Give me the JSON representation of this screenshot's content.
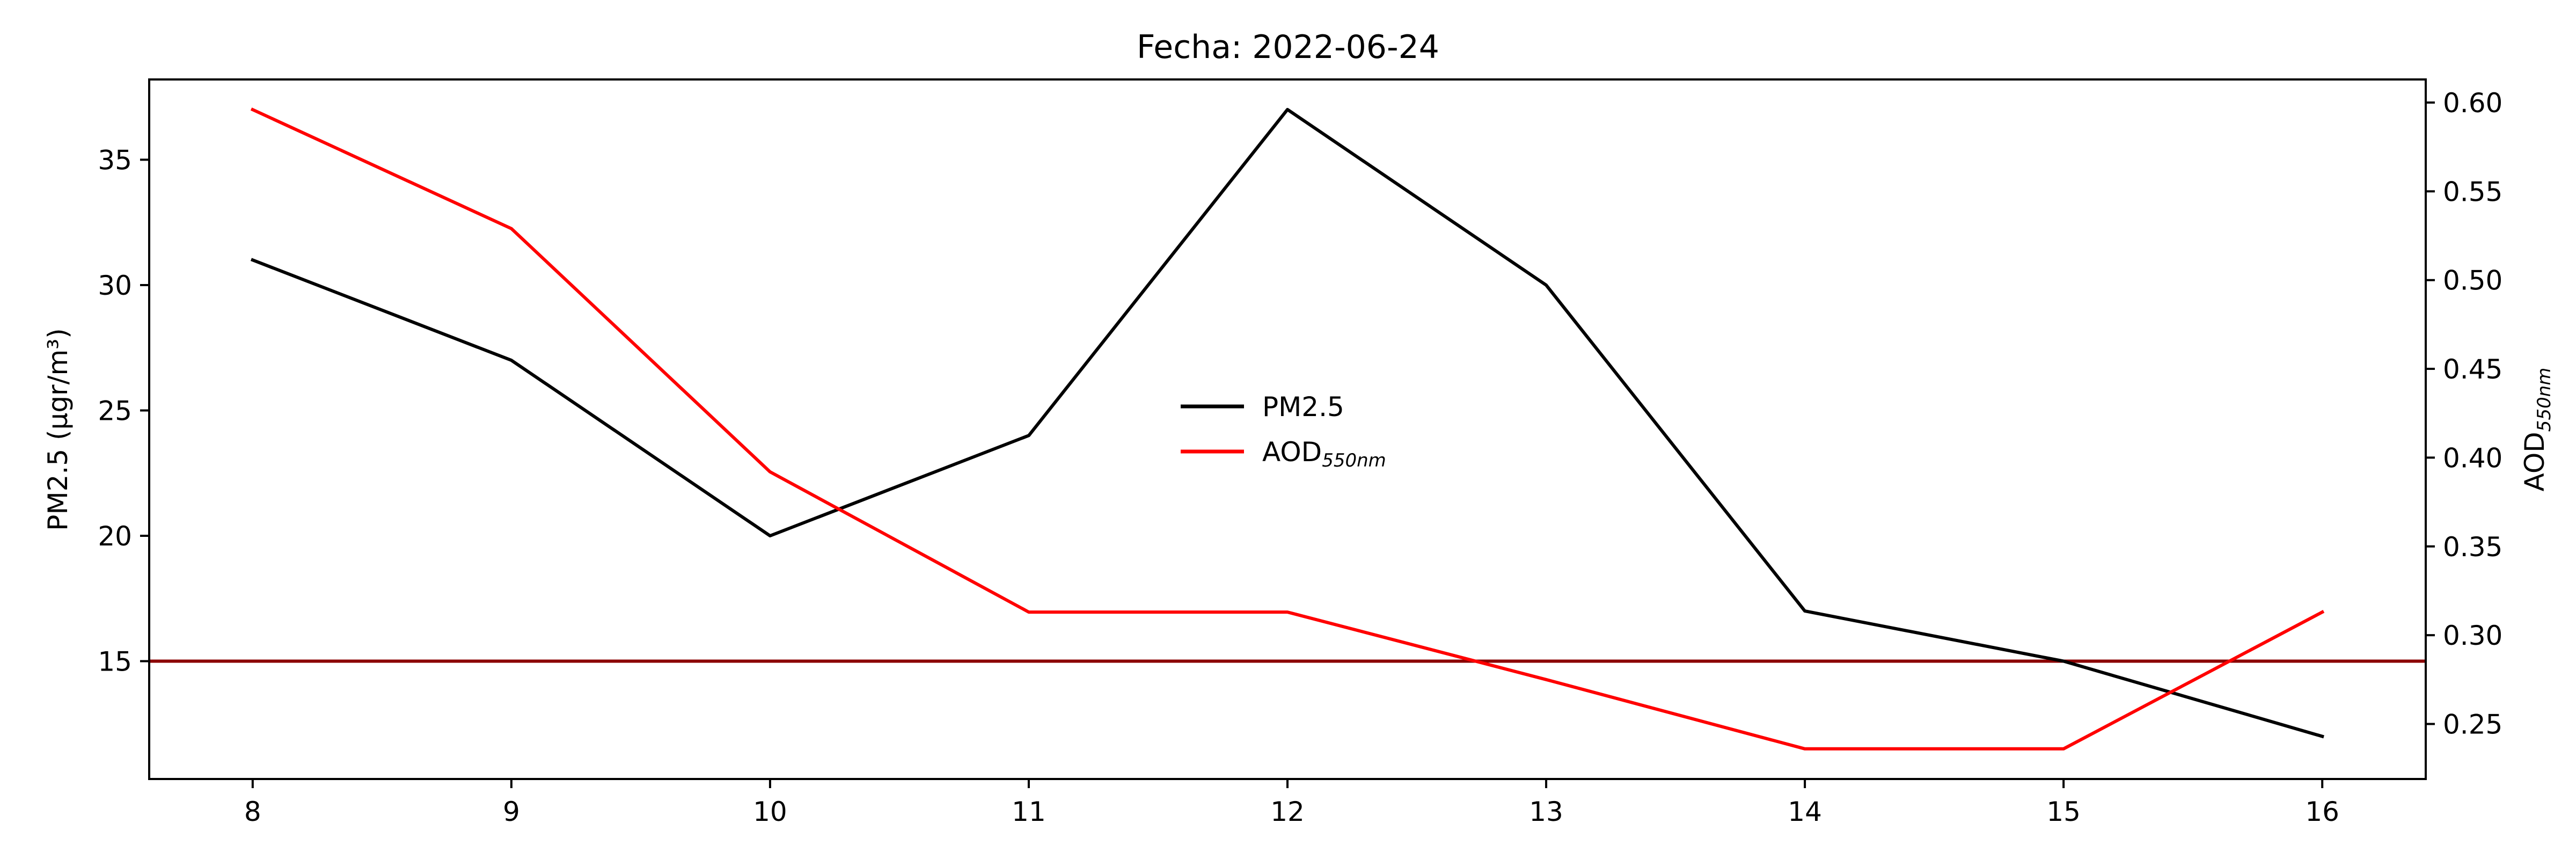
{
  "chart_data": {
    "type": "line",
    "title": "Fecha: 2022-06-24",
    "x": [
      8,
      9,
      10,
      11,
      12,
      13,
      14,
      15,
      16
    ],
    "x_ticks": [
      "8",
      "9",
      "10",
      "11",
      "12",
      "13",
      "14",
      "15",
      "16"
    ],
    "xlim": [
      7.6,
      16.4
    ],
    "y_left": {
      "label": "PM2.5 (μgr/m³)",
      "ylim": [
        10.3,
        38.2
      ],
      "ticks": [
        15,
        20,
        25,
        30,
        35
      ],
      "tick_labels": [
        "15",
        "20",
        "25",
        "30",
        "35"
      ]
    },
    "y_right": {
      "label": "AOD550nm",
      "label_main": "AOD",
      "label_sub": "550nm",
      "ylim": [
        0.219,
        0.613
      ],
      "ticks": [
        0.25,
        0.3,
        0.35,
        0.4,
        0.45,
        0.5,
        0.55,
        0.6
      ],
      "tick_labels": [
        "0.25",
        "0.30",
        "0.35",
        "0.40",
        "0.45",
        "0.50",
        "0.55",
        "0.60"
      ]
    },
    "series": [
      {
        "name": "PM2.5",
        "axis": "left",
        "color": "#000000",
        "values": [
          31,
          27,
          20,
          24,
          37,
          30,
          17,
          15,
          12
        ]
      },
      {
        "name": "AOD550nm",
        "name_main": "AOD",
        "name_sub": "550nm",
        "axis": "right",
        "color": "#ff0000",
        "values": [
          0.596,
          0.529,
          0.392,
          0.313,
          0.313,
          0.275,
          0.236,
          0.236,
          0.313
        ]
      }
    ],
    "reference_lines": [
      {
        "axis": "left",
        "y": 15,
        "color": "#8b0000"
      }
    ],
    "grid": false,
    "legend": "center"
  }
}
